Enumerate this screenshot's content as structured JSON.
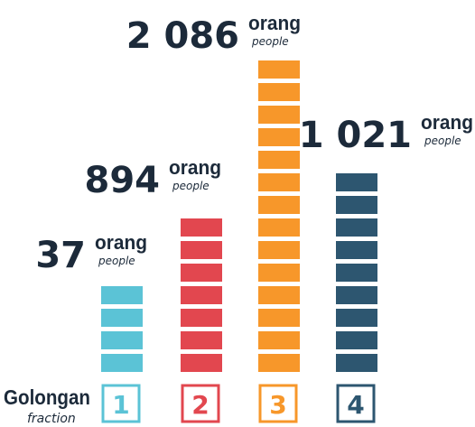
{
  "items": [
    {
      "value": "37",
      "unit": "orang",
      "unit_en": "people",
      "group": "1"
    },
    {
      "value": "894",
      "unit": "orang",
      "unit_en": "people",
      "group": "2"
    },
    {
      "value": "2 086",
      "unit": "orang",
      "unit_en": "people",
      "group": "3"
    },
    {
      "value": "1 021",
      "unit": "orang",
      "unit_en": "people",
      "group": "4"
    }
  ],
  "footer": {
    "label": "Golongan",
    "label_en": "fraction"
  }
}
